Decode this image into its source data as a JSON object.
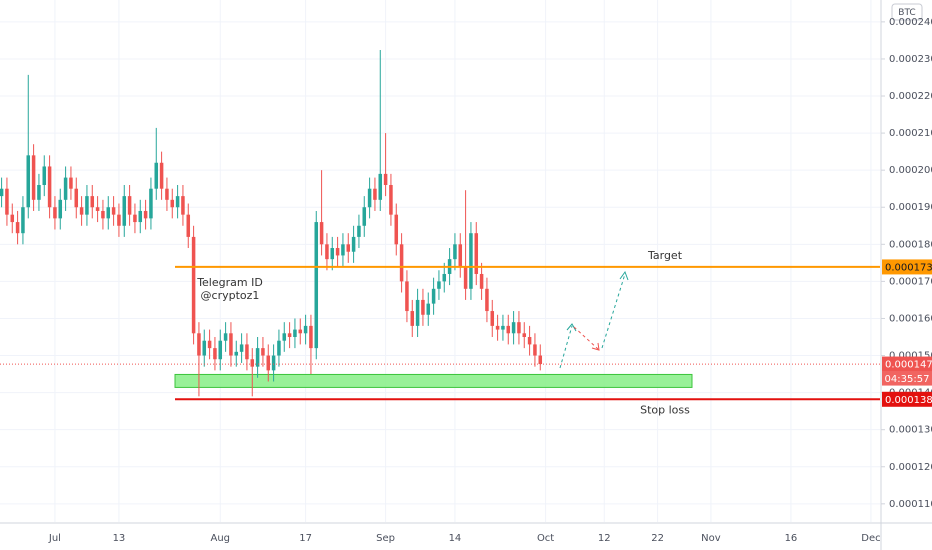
{
  "chart_data": {
    "type": "candlestick",
    "currency": "BTC",
    "x": [
      "Jun 21",
      "Jun 22",
      "Jun 23",
      "Jun 24",
      "Jun 25",
      "Jun 26",
      "Jun 27",
      "Jun 28",
      "Jun 29",
      "Jun 30",
      "Jul 1",
      "Jul 2",
      "Jul 3",
      "Jul 4",
      "Jul 5",
      "Jul 6",
      "Jul 7",
      "Jul 8",
      "Jul 9",
      "Jul 10",
      "Jul 11",
      "Jul 12",
      "Jul 13",
      "Jul 14",
      "Jul 15",
      "Jul 16",
      "Jul 17",
      "Jul 18",
      "Jul 19",
      "Jul 20",
      "Jul 21",
      "Jul 22",
      "Jul 23",
      "Jul 24",
      "Jul 25",
      "Jul 26",
      "Jul 27",
      "Jul 28",
      "Jul 29",
      "Jul 30",
      "Jul 31",
      "Aug 1",
      "Aug 2",
      "Aug 3",
      "Aug 4",
      "Aug 5",
      "Aug 6",
      "Aug 7",
      "Aug 8",
      "Aug 9",
      "Aug 10",
      "Aug 11",
      "Aug 12",
      "Aug 13",
      "Aug 14",
      "Aug 15",
      "Aug 16",
      "Aug 17",
      "Aug 18",
      "Aug 19",
      "Aug 20",
      "Aug 21",
      "Aug 22",
      "Aug 23",
      "Aug 24",
      "Aug 25",
      "Aug 26",
      "Aug 27",
      "Aug 28",
      "Aug 29",
      "Aug 30",
      "Aug 31",
      "Sep 1",
      "Sep 2",
      "Sep 3",
      "Sep 4",
      "Sep 5",
      "Sep 6",
      "Sep 7",
      "Sep 8",
      "Sep 9",
      "Sep 10",
      "Sep 11",
      "Sep 12",
      "Sep 13",
      "Sep 14",
      "Sep 15",
      "Sep 16",
      "Sep 17",
      "Sep 18",
      "Sep 19",
      "Sep 20",
      "Sep 21",
      "Sep 22",
      "Sep 23",
      "Sep 24",
      "Sep 25",
      "Sep 26",
      "Sep 27",
      "Sep 28",
      "Sep 29",
      "Sep 30"
    ],
    "open": [
      0.000193,
      0.000195,
      0.000188,
      0.000186,
      0.000183,
      0.00019,
      0.000204,
      0.000192,
      0.000196,
      0.000201,
      0.00019,
      0.000187,
      0.000192,
      0.000198,
      0.000195,
      0.00019,
      0.000188,
      0.000193,
      0.00019,
      0.000189,
      0.000187,
      0.00019,
      0.000188,
      0.000185,
      0.000193,
      0.000188,
      0.000186,
      0.000189,
      0.000187,
      0.000195,
      0.000202,
      0.000195,
      0.000192,
      0.00019,
      0.000193,
      0.000188,
      0.000182,
      0.000156,
      0.00015,
      0.000154,
      0.000152,
      0.000149,
      0.000154,
      0.000156,
      0.00015,
      0.000151,
      0.000153,
      0.000149,
      0.000147,
      0.000152,
      0.00015,
      0.000146,
      0.00015,
      0.000154,
      0.000156,
      0.000155,
      0.000157,
      0.000156,
      0.000158,
      0.000152,
      0.000186,
      0.00018,
      0.000176,
      0.000179,
      0.000177,
      0.00018,
      0.000178,
      0.000182,
      0.000185,
      0.00019,
      0.000195,
      0.000192,
      0.000199,
      0.000196,
      0.000188,
      0.00018,
      0.00017,
      0.000162,
      0.000158,
      0.000165,
      0.000161,
      0.000164,
      0.000168,
      0.00017,
      0.000172,
      0.000176,
      0.00018,
      0.000174,
      0.000168,
      0.000183,
      0.000172,
      0.000168,
      0.000162,
      0.000158,
      0.000157,
      0.000158,
      0.000156,
      0.000159,
      0.000156,
      0.000155,
      0.000153,
      0.00015
    ],
    "high": [
      0.000198,
      0.000198,
      0.000191,
      0.000189,
      0.000193,
      0.0002257,
      0.000207,
      0.000199,
      0.000204,
      0.000204,
      0.000193,
      0.000195,
      0.000201,
      0.000201,
      0.000198,
      0.000193,
      0.000196,
      0.000196,
      0.000193,
      0.000192,
      0.000193,
      0.000193,
      0.000191,
      0.000196,
      0.000196,
      0.000191,
      0.000192,
      0.000192,
      0.000198,
      0.0002114,
      0.000205,
      0.000198,
      0.000195,
      0.000196,
      0.000196,
      0.000191,
      0.000185,
      0.000159,
      0.000157,
      0.000157,
      0.000155,
      0.000157,
      0.000159,
      0.000159,
      0.000154,
      0.000156,
      0.000156,
      0.000152,
      0.000155,
      0.000155,
      0.000153,
      0.000153,
      0.000157,
      0.000159,
      0.000159,
      0.00016,
      0.00016,
      0.000161,
      0.000161,
      0.000189,
      0.0002,
      0.000183,
      0.000182,
      0.000182,
      0.000183,
      0.000183,
      0.000185,
      0.000188,
      0.000193,
      0.000198,
      0.000198,
      0.0002324,
      0.00021,
      0.000199,
      0.000191,
      0.000183,
      0.000173,
      0.000165,
      0.000168,
      0.000168,
      0.000167,
      0.000171,
      0.000173,
      0.000175,
      0.000179,
      0.000183,
      0.000183,
      0.0001946,
      0.000186,
      0.000186,
      0.000175,
      0.000171,
      0.000165,
      0.000161,
      0.000161,
      0.000161,
      0.000162,
      0.000162,
      0.000159,
      0.000158,
      0.000156,
      0.000153
    ],
    "low": [
      0.00019,
      0.000185,
      0.000183,
      0.00018,
      0.00018,
      0.000187,
      0.000189,
      0.000189,
      0.000193,
      0.000187,
      0.000184,
      0.000184,
      0.000189,
      0.000192,
      0.000187,
      0.000185,
      0.000185,
      0.000187,
      0.000186,
      0.000184,
      0.000184,
      0.000185,
      0.000182,
      0.000182,
      0.000185,
      0.000183,
      0.000183,
      0.000184,
      0.000184,
      0.000192,
      0.000192,
      0.000189,
      0.000187,
      0.000187,
      0.000185,
      0.000179,
      0.000153,
      0.000139,
      0.000147,
      0.000149,
      0.000146,
      0.000146,
      0.000151,
      0.000147,
      0.000147,
      0.000148,
      0.000146,
      0.000139,
      0.000144,
      0.000147,
      0.000143,
      0.000143,
      0.000147,
      0.000151,
      0.000152,
      0.000152,
      0.000153,
      0.000153,
      0.000145,
      0.000149,
      0.000177,
      0.000173,
      0.000173,
      0.000174,
      0.000174,
      0.000175,
      0.000175,
      0.000179,
      0.000182,
      0.000187,
      0.000189,
      0.000189,
      0.000193,
      0.000185,
      0.000177,
      0.000167,
      0.000159,
      0.000155,
      0.000155,
      0.000158,
      0.000158,
      0.000161,
      0.000165,
      0.000167,
      0.000169,
      0.000173,
      0.000171,
      0.000165,
      0.000165,
      0.000169,
      0.000165,
      0.000159,
      0.000155,
      0.000154,
      0.000154,
      0.000153,
      0.000153,
      0.000153,
      0.000152,
      0.00015,
      0.000147,
      0.000146
    ],
    "close": [
      0.000195,
      0.000188,
      0.000186,
      0.000183,
      0.00019,
      0.000204,
      0.000192,
      0.000196,
      0.000201,
      0.00019,
      0.000187,
      0.000192,
      0.000198,
      0.000195,
      0.00019,
      0.000188,
      0.000193,
      0.00019,
      0.000189,
      0.000187,
      0.00019,
      0.000188,
      0.000185,
      0.000193,
      0.000188,
      0.000186,
      0.000189,
      0.000187,
      0.000195,
      0.000202,
      0.000195,
      0.000192,
      0.00019,
      0.000193,
      0.000188,
      0.000182,
      0.000156,
      0.00015,
      0.000154,
      0.000152,
      0.000149,
      0.000154,
      0.000156,
      0.00015,
      0.000151,
      0.000153,
      0.000149,
      0.000147,
      0.000152,
      0.00015,
      0.000146,
      0.00015,
      0.000154,
      0.000156,
      0.000155,
      0.000157,
      0.000156,
      0.000158,
      0.000152,
      0.000186,
      0.00018,
      0.000176,
      0.000179,
      0.000177,
      0.00018,
      0.000178,
      0.000182,
      0.000185,
      0.00019,
      0.000195,
      0.000192,
      0.000199,
      0.000196,
      0.000188,
      0.00018,
      0.00017,
      0.000162,
      0.000158,
      0.000165,
      0.000161,
      0.000164,
      0.000168,
      0.00017,
      0.000172,
      0.000176,
      0.00018,
      0.000174,
      0.000168,
      0.000183,
      0.000172,
      0.000168,
      0.000162,
      0.000158,
      0.000157,
      0.000158,
      0.000156,
      0.000159,
      0.000156,
      0.000155,
      0.000153,
      0.00015,
      0.0001477
    ],
    "up_color": "#26a69a",
    "down_color": "#ef5350",
    "xlim": [
      "Jun 21",
      "Dec 3"
    ],
    "xticks": [
      {
        "value": "Jul 1",
        "label": "Jul"
      },
      {
        "value": "Jul 13",
        "label": "13"
      },
      {
        "value": "Aug 1",
        "label": "Aug"
      },
      {
        "value": "Aug 17",
        "label": "17"
      },
      {
        "value": "Sep 1",
        "label": "Sep"
      },
      {
        "value": "Sep 14",
        "label": "14"
      },
      {
        "value": "Oct 1",
        "label": "Oct"
      },
      {
        "value": "Oct 12",
        "label": "12"
      },
      {
        "value": "Oct 22",
        "label": "22"
      },
      {
        "value": "Nov 1",
        "label": "Nov"
      },
      {
        "value": "Nov 16",
        "label": "16"
      },
      {
        "value": "Dec 1",
        "label": "Dec"
      }
    ],
    "ylim": [
      0.0001051,
      0.0002459
    ],
    "yticks": [
      {
        "value": 0.00011,
        "label": "0.0001100"
      },
      {
        "value": 0.00012,
        "label": "0.0001200"
      },
      {
        "value": 0.00013,
        "label": "0.0001300"
      },
      {
        "value": 0.00014,
        "label": "0.0001400"
      },
      {
        "value": 0.00015,
        "label": "0.0001500"
      },
      {
        "value": 0.00016,
        "label": "0.0001600"
      },
      {
        "value": 0.00017,
        "label": "0.0001700"
      },
      {
        "value": 0.00018,
        "label": "0.0001800"
      },
      {
        "value": 0.00019,
        "label": "0.0001900"
      },
      {
        "value": 0.0002,
        "label": "0.0002000"
      },
      {
        "value": 0.00021,
        "label": "0.0002100"
      },
      {
        "value": 0.00022,
        "label": "0.0002200"
      },
      {
        "value": 0.00023,
        "label": "0.0002300"
      },
      {
        "value": 0.00024,
        "label": "0.0002400"
      }
    ],
    "grid": true,
    "levels": [
      {
        "name": "Target",
        "value": 0.0001739,
        "color": "#ff9800"
      },
      {
        "name": "Stop loss",
        "value": 0.0001382,
        "color": "#e3110f"
      }
    ],
    "zone": {
      "low": 0.0001414,
      "high": 0.0001449,
      "color": "#86ee86"
    },
    "last_price": 0.0001477,
    "countdown": "04:35:57",
    "annotations": [
      "Telegram ID",
      "@cryptoz1"
    ]
  }
}
